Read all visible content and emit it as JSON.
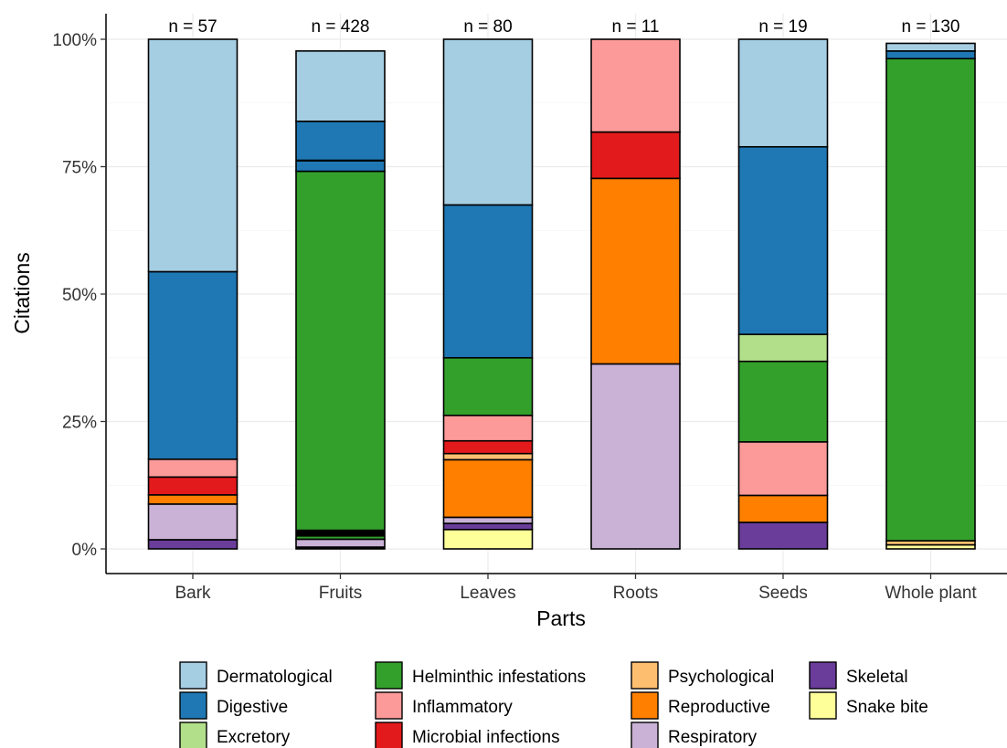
{
  "chart_data": {
    "type": "bar",
    "stacked": true,
    "normalized": true,
    "xlabel": "Parts",
    "ylabel": "Citations",
    "ylim": [
      0,
      100
    ],
    "yticks": [
      "0%",
      "25%",
      "50%",
      "75%",
      "100%"
    ],
    "ytick_values": [
      0,
      25,
      50,
      75,
      100
    ],
    "grid": true,
    "legend_position": "bottom",
    "categories": [
      "Bark",
      "Fruits",
      "Leaves",
      "Roots",
      "Seeds",
      "Whole plant"
    ],
    "counts": [
      "n = 57",
      "n = 428",
      "n = 80",
      "n = 11",
      "n = 19",
      "n = 130"
    ],
    "stack_order": [
      "Snake bite",
      "Skeletal",
      "Respiratory",
      "Reproductive",
      "Psychological",
      "Microbial infections",
      "Inflammatory",
      "Helminthic infestations",
      "Excretory",
      "Digestive",
      "Dermatological"
    ],
    "series": [
      {
        "name": "Dermatological",
        "color": "#a6cee3",
        "values": [
          45.6,
          13.8,
          32.5,
          0,
          21.1,
          1.5
        ]
      },
      {
        "name": "Digestive",
        "color": "#1f78b4",
        "values": [
          36.8,
          9.8,
          30.0,
          0,
          36.8,
          1.5
        ]
      },
      {
        "name": "Excretory",
        "color": "#b2df8a",
        "values": [
          0,
          0,
          0,
          0,
          5.3,
          0
        ]
      },
      {
        "name": "Helminthic infestations",
        "color": "#33a02c",
        "values": [
          0,
          72.2,
          11.3,
          0,
          15.8,
          94.6
        ]
      },
      {
        "name": "Inflammatory",
        "color": "#fb9a99",
        "values": [
          3.5,
          0,
          5.0,
          18.2,
          10.5,
          0
        ]
      },
      {
        "name": "Microbial infections",
        "color": "#e31a1c",
        "values": [
          3.5,
          0,
          2.5,
          9.1,
          0,
          0
        ]
      },
      {
        "name": "Psychological",
        "color": "#fdbf6f",
        "values": [
          0,
          0,
          1.2,
          0,
          0,
          0.8
        ]
      },
      {
        "name": "Reproductive",
        "color": "#ff7f00",
        "values": [
          1.8,
          0,
          11.3,
          36.4,
          5.3,
          0
        ]
      },
      {
        "name": "Respiratory",
        "color": "#cab2d6",
        "values": [
          7.0,
          1.9,
          1.2,
          36.3,
          0,
          0
        ]
      },
      {
        "name": "Skeletal",
        "color": "#6a3d9a",
        "values": [
          1.8,
          0,
          1.2,
          0,
          5.2,
          0
        ]
      },
      {
        "name": "Snake bite",
        "color": "#ffff99",
        "values": [
          0,
          0,
          3.8,
          0,
          0,
          0.8
        ]
      }
    ],
    "extra_segments": [
      {
        "category": "Fruits",
        "color": "#000000",
        "from": 0,
        "to": 0.5
      },
      {
        "category": "Fruits",
        "color": "#000000",
        "from": 2.4,
        "to": 3.8
      },
      {
        "category": "Fruits",
        "color": "#000000",
        "from": 76.0,
        "to": 76.4
      }
    ],
    "legend_columns": [
      [
        "Dermatological",
        "Digestive",
        "Excretory"
      ],
      [
        "Helminthic infestations",
        "Inflammatory",
        "Microbial infections"
      ],
      [
        "Psychological",
        "Reproductive",
        "Respiratory"
      ],
      [
        "Skeletal",
        "Snake bite"
      ]
    ]
  }
}
